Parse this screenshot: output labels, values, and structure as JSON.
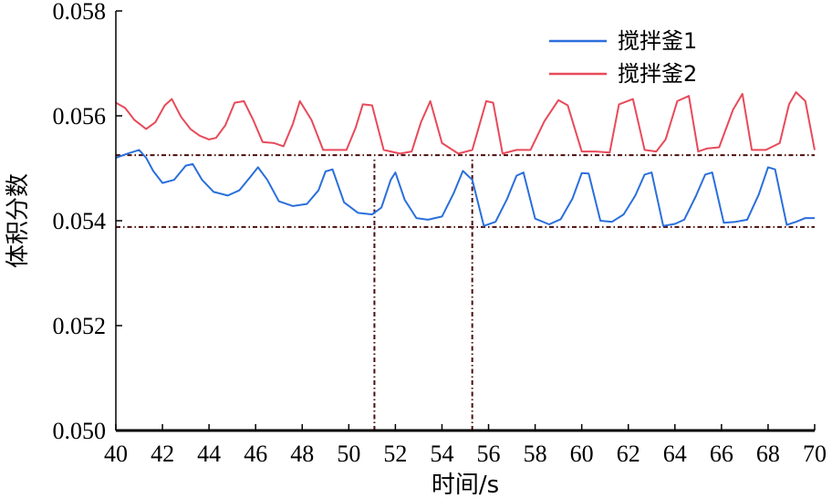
{
  "chart_data": {
    "type": "line",
    "xlabel": "时间/s",
    "ylabel": "体积分数",
    "xlim": [
      40,
      70
    ],
    "ylim": [
      0.05,
      0.058
    ],
    "x_ticks": [
      40,
      42,
      44,
      46,
      48,
      50,
      52,
      54,
      56,
      58,
      60,
      62,
      64,
      66,
      68,
      70
    ],
    "y_ticks": [
      {
        "value": 0.05,
        "label": "0.050"
      },
      {
        "value": 0.052,
        "label": "0.052"
      },
      {
        "value": 0.054,
        "label": "0.054"
      },
      {
        "value": 0.056,
        "label": "0.056"
      },
      {
        "value": 0.058,
        "label": "0.058"
      }
    ],
    "legend_position": "top-right",
    "series": [
      {
        "name": "搅拌釜1",
        "color": "#2a6fdb",
        "x": [
          40.0,
          40.5,
          41.0,
          41.3,
          41.6,
          42.0,
          42.5,
          43.0,
          43.3,
          43.7,
          44.2,
          44.8,
          45.3,
          45.8,
          46.1,
          46.5,
          47.0,
          47.6,
          48.2,
          48.7,
          49.0,
          49.3,
          49.8,
          50.4,
          51.0,
          51.4,
          51.8,
          52.0,
          52.4,
          52.9,
          53.4,
          54.0,
          54.5,
          54.9,
          55.3,
          55.8,
          56.3,
          56.8,
          57.2,
          57.5,
          58.0,
          58.6,
          59.1,
          59.6,
          60.0,
          60.3,
          60.8,
          61.3,
          61.8,
          62.3,
          62.7,
          63.0,
          63.5,
          64.0,
          64.4,
          64.9,
          65.3,
          65.6,
          66.1,
          66.6,
          67.1,
          67.6,
          68.0,
          68.3,
          68.8,
          69.2,
          69.6,
          70.0
        ],
        "values": [
          0.0552,
          0.05528,
          0.05535,
          0.0552,
          0.05495,
          0.05472,
          0.05478,
          0.05505,
          0.05508,
          0.05478,
          0.05455,
          0.05448,
          0.05458,
          0.05485,
          0.05502,
          0.05478,
          0.05437,
          0.05428,
          0.05432,
          0.05458,
          0.05494,
          0.05498,
          0.05435,
          0.05415,
          0.05412,
          0.05425,
          0.05478,
          0.05492,
          0.0544,
          0.05405,
          0.05402,
          0.05408,
          0.05452,
          0.05495,
          0.05478,
          0.0539,
          0.05398,
          0.05442,
          0.05486,
          0.05492,
          0.05404,
          0.05393,
          0.05403,
          0.05442,
          0.05491,
          0.0549,
          0.054,
          0.05398,
          0.05412,
          0.05448,
          0.05488,
          0.05492,
          0.0539,
          0.05394,
          0.05402,
          0.05447,
          0.05488,
          0.05492,
          0.05396,
          0.05398,
          0.05402,
          0.0545,
          0.05502,
          0.05498,
          0.05392,
          0.05398,
          0.05405,
          0.05405
        ]
      },
      {
        "name": "搅拌釜2",
        "color": "#e84a5a",
        "x": [
          40.0,
          40.4,
          40.8,
          41.3,
          41.7,
          42.1,
          42.4,
          42.8,
          43.2,
          43.6,
          44.0,
          44.3,
          44.7,
          45.1,
          45.5,
          45.9,
          46.3,
          46.8,
          47.2,
          47.6,
          47.9,
          48.4,
          48.9,
          49.4,
          49.9,
          50.3,
          50.6,
          51.0,
          51.5,
          52.2,
          52.7,
          53.1,
          53.5,
          54.0,
          54.7,
          55.3,
          55.9,
          56.2,
          56.6,
          57.2,
          57.8,
          58.4,
          59.0,
          59.4,
          60.0,
          60.6,
          61.2,
          61.6,
          62.2,
          62.7,
          63.2,
          63.6,
          64.1,
          64.6,
          65.0,
          65.4,
          65.9,
          66.5,
          66.9,
          67.3,
          67.9,
          68.5,
          68.9,
          69.2,
          69.6,
          70.0
        ],
        "values": [
          0.05625,
          0.05615,
          0.05592,
          0.05575,
          0.05588,
          0.0562,
          0.05632,
          0.05598,
          0.05575,
          0.05562,
          0.05555,
          0.05558,
          0.05582,
          0.05625,
          0.05628,
          0.05592,
          0.0555,
          0.05548,
          0.05542,
          0.05585,
          0.05628,
          0.05592,
          0.05535,
          0.05535,
          0.05535,
          0.05578,
          0.05622,
          0.0562,
          0.05535,
          0.05528,
          0.05532,
          0.05588,
          0.05628,
          0.05548,
          0.05528,
          0.05535,
          0.05628,
          0.05625,
          0.05528,
          0.05535,
          0.05535,
          0.0559,
          0.0563,
          0.0562,
          0.05532,
          0.05532,
          0.0553,
          0.05622,
          0.05632,
          0.05535,
          0.05532,
          0.05555,
          0.05628,
          0.05638,
          0.05532,
          0.05538,
          0.0554,
          0.05612,
          0.05642,
          0.05535,
          0.05535,
          0.05548,
          0.05622,
          0.05645,
          0.05628,
          0.05535
        ]
      }
    ],
    "reference_lines": [
      {
        "orientation": "horizontal",
        "value": 0.05525,
        "color": "#4a0d0d"
      },
      {
        "orientation": "horizontal",
        "value": 0.05388,
        "color": "#4a0d0d"
      },
      {
        "orientation": "vertical",
        "value": 51.1,
        "color": "#4a0d0d"
      },
      {
        "orientation": "vertical",
        "value": 55.3,
        "color": "#4a0d0d"
      }
    ]
  }
}
